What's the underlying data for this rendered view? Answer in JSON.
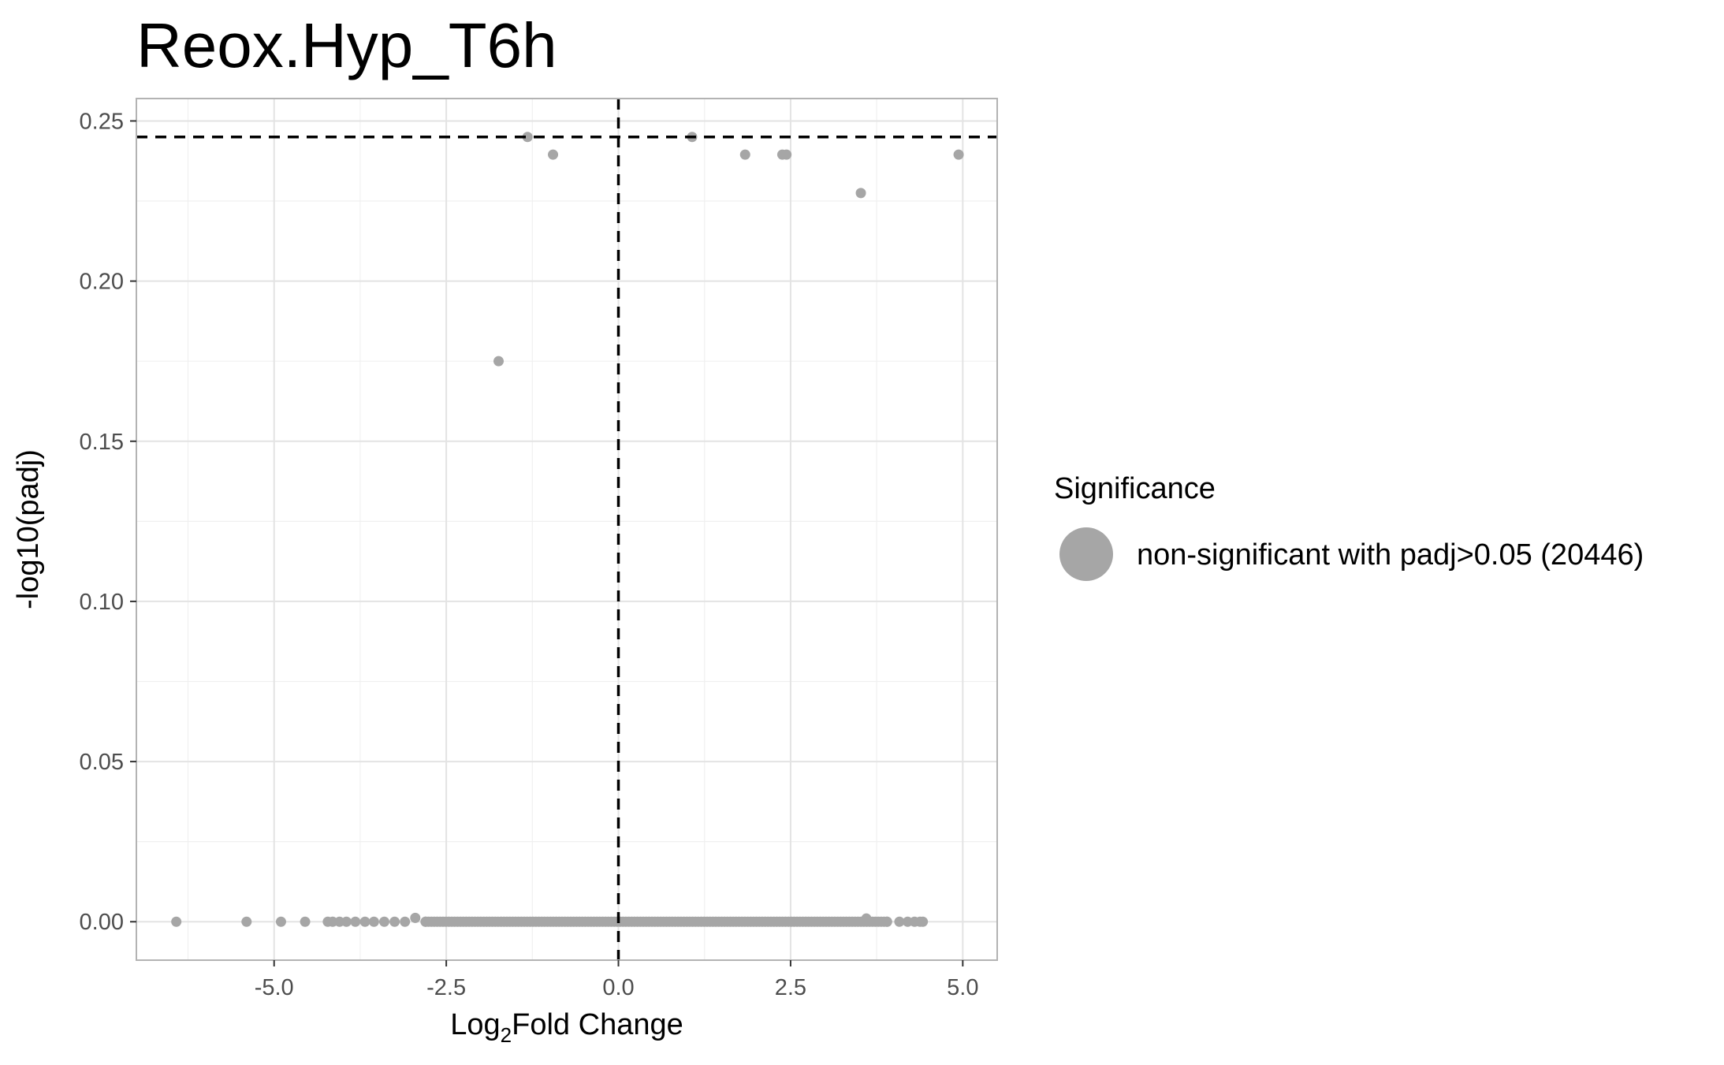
{
  "chart_data": {
    "type": "scatter",
    "title": "Reox.Hyp_T6h",
    "xlabel_main": "Log",
    "xlabel_sub": "2",
    "xlabel_rest": "Fold Change",
    "ylabel": "-log10(padj)",
    "xlim": [
      -7.0,
      5.5
    ],
    "ylim": [
      -0.012,
      0.257
    ],
    "x_ticks": [
      -5.0,
      -2.5,
      0.0,
      2.5,
      5.0
    ],
    "x_tick_labels": [
      "-5.0",
      "-2.5",
      "0.0",
      "2.5",
      "5.0"
    ],
    "y_ticks": [
      0.0,
      0.05,
      0.1,
      0.15,
      0.2,
      0.25
    ],
    "y_tick_labels": [
      "0.00",
      "0.05",
      "0.10",
      "0.15",
      "0.20",
      "0.25"
    ],
    "grid": true,
    "reference_lines": {
      "vertical_x": 0.0,
      "horizontal_y": 0.245
    },
    "legend": {
      "position": "right",
      "title": "Significance",
      "entries": [
        {
          "label": "non-significant with padj>0.05 (20446)",
          "color": "#a6a6a6"
        }
      ]
    },
    "series": [
      {
        "name": "non-significant with padj>0.05 (20446)",
        "color": "#a6a6a6",
        "points": [
          {
            "x": -1.32,
            "y": 0.245
          },
          {
            "x": -0.95,
            "y": 0.2395
          },
          {
            "x": 1.07,
            "y": 0.245
          },
          {
            "x": 1.84,
            "y": 0.2395
          },
          {
            "x": 2.38,
            "y": 0.2395
          },
          {
            "x": 2.44,
            "y": 0.2395
          },
          {
            "x": 3.52,
            "y": 0.2275
          },
          {
            "x": 4.94,
            "y": 0.2395
          },
          {
            "x": -1.74,
            "y": 0.175
          },
          {
            "x": -6.42,
            "y": 0.0
          },
          {
            "x": -5.4,
            "y": 0.0
          },
          {
            "x": -4.9,
            "y": 0.0
          },
          {
            "x": -4.55,
            "y": 0.0
          },
          {
            "x": -4.22,
            "y": 0.0
          },
          {
            "x": -4.15,
            "y": 0.0
          },
          {
            "x": -4.05,
            "y": 0.0
          },
          {
            "x": -3.95,
            "y": 0.0
          },
          {
            "x": -3.82,
            "y": 0.0
          },
          {
            "x": -3.68,
            "y": 0.0
          },
          {
            "x": -3.55,
            "y": 0.0
          },
          {
            "x": -3.4,
            "y": 0.0
          },
          {
            "x": -3.25,
            "y": 0.0
          },
          {
            "x": -3.1,
            "y": 0.0
          },
          {
            "x": -2.95,
            "y": 0.0012
          },
          {
            "x": -2.8,
            "y": 0.0
          },
          {
            "x": 3.6,
            "y": 0.001
          },
          {
            "x": 3.9,
            "y": 0.0
          },
          {
            "x": 4.08,
            "y": 0.0
          },
          {
            "x": 4.2,
            "y": 0.0
          },
          {
            "x": 4.3,
            "y": 0.0
          },
          {
            "x": 4.38,
            "y": 0.0
          },
          {
            "x": 4.42,
            "y": 0.0
          }
        ],
        "dense_band": {
          "x_start": -2.8,
          "x_end": 3.9,
          "y": 0.0
        }
      }
    ]
  }
}
